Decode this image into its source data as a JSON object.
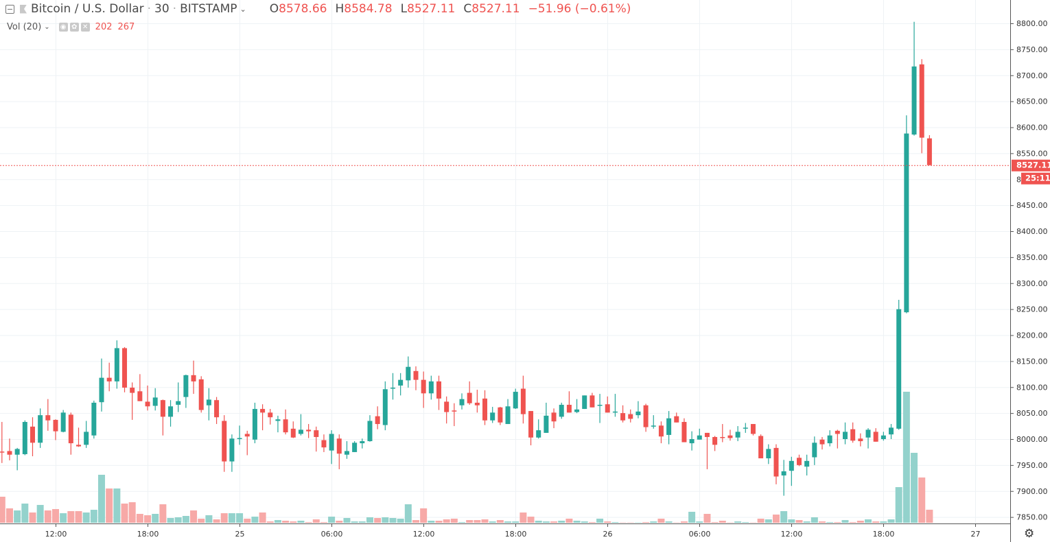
{
  "legend": {
    "symbol": "Bitcoin / U.S. Dollar",
    "interval": "30",
    "exchange": "BITSTAMP",
    "o_label": "O",
    "o": "8578.66",
    "h_label": "H",
    "h": "8584.78",
    "l_label": "L",
    "l": "8527.11",
    "c_label": "C",
    "c": "8527.11",
    "change": "−51.96 (−0.61%)"
  },
  "volume_legend": {
    "label": "Vol (20)",
    "volume": "202",
    "ma": "267"
  },
  "price_label": {
    "last": "8527.11",
    "countdown": "25:11",
    "hidden_tick": "8"
  },
  "colors": {
    "up": "#26a69a",
    "down": "#ef5350",
    "up_volume": "#93d2cc",
    "down_volume": "#f7a9a7",
    "grid": "#eef2f5"
  },
  "icons": {
    "collapse": "minus-square-icon",
    "settings": "gear-icon"
  },
  "chart_data": {
    "type": "candlestick",
    "interval_minutes": 30,
    "ylim": [
      7850,
      8800
    ],
    "yticks": [
      8800,
      8750,
      8700,
      8650,
      8600,
      8550,
      8450,
      8400,
      8350,
      8300,
      8250,
      8200,
      8150,
      8100,
      8050,
      8000,
      7950,
      7900,
      7850
    ],
    "xticks": [
      {
        "at": "24 12:00",
        "label": "12:00"
      },
      {
        "at": "24 18:00",
        "label": "18:00"
      },
      {
        "at": "25 00:00",
        "label": "25"
      },
      {
        "at": "25 06:00",
        "label": "06:00"
      },
      {
        "at": "25 12:00",
        "label": "12:00"
      },
      {
        "at": "25 18:00",
        "label": "18:00"
      },
      {
        "at": "26 00:00",
        "label": "26"
      },
      {
        "at": "26 06:00",
        "label": "06:00"
      },
      {
        "at": "26 12:00",
        "label": "12:00"
      },
      {
        "at": "26 18:00",
        "label": "18:00"
      },
      {
        "at": "27 00:00",
        "label": "27"
      }
    ],
    "grid": true,
    "columns": [
      "time",
      "open",
      "high",
      "low",
      "close",
      "volume"
    ],
    "candles": [
      [
        "24 08:30",
        7976,
        8033,
        7954,
        7975,
        403
      ],
      [
        "24 09:00",
        7977,
        8001,
        7959,
        7970,
        223
      ],
      [
        "24 09:30",
        7970,
        7983,
        7940,
        7981,
        191
      ],
      [
        "24 10:00",
        7971,
        8036,
        7969,
        8033,
        297
      ],
      [
        "24 10:30",
        8024,
        8042,
        7967,
        7993,
        159
      ],
      [
        "24 11:00",
        7993,
        8059,
        7983,
        8046,
        276
      ],
      [
        "24 11:30",
        8046,
        8077,
        8016,
        8036,
        191
      ],
      [
        "24 12:00",
        8037,
        8038,
        7998,
        8015,
        212
      ],
      [
        "24 12:30",
        8014,
        8056,
        8013,
        8051,
        148
      ],
      [
        "24 13:00",
        8047,
        8051,
        7970,
        7992,
        180
      ],
      [
        "24 13:30",
        7989,
        8022,
        7985,
        7986,
        180
      ],
      [
        "24 14:00",
        7989,
        8035,
        7983,
        8014,
        159
      ],
      [
        "24 14:30",
        8007,
        8074,
        8001,
        8070,
        201
      ],
      [
        "24 15:00",
        8071,
        8155,
        8053,
        8118,
        742
      ],
      [
        "24 15:30",
        8118,
        8147,
        8092,
        8111,
        530
      ],
      [
        "24 16:00",
        8111,
        8190,
        8097,
        8175,
        530
      ],
      [
        "24 16:30",
        8175,
        8177,
        8090,
        8099,
        297
      ],
      [
        "24 17:00",
        8099,
        8109,
        8037,
        8089,
        318
      ],
      [
        "24 17:30",
        8092,
        8125,
        8073,
        8073,
        138
      ],
      [
        "24 18:00",
        8072,
        8103,
        8055,
        8063,
        117
      ],
      [
        "24 18:30",
        8064,
        8098,
        8055,
        8080,
        138
      ],
      [
        "24 19:00",
        8075,
        8076,
        8007,
        8043,
        286
      ],
      [
        "24 19:30",
        8043,
        8075,
        8024,
        8063,
        74
      ],
      [
        "24 20:00",
        8066,
        8109,
        8052,
        8073,
        85
      ],
      [
        "24 20:30",
        8081,
        8124,
        8060,
        8123,
        106
      ],
      [
        "24 21:00",
        8123,
        8151,
        8087,
        8111,
        191
      ],
      [
        "24 21:30",
        8115,
        8121,
        8051,
        8056,
        64
      ],
      [
        "24 22:00",
        8065,
        8098,
        8036,
        8076,
        117
      ],
      [
        "24 22:30",
        8075,
        8081,
        8029,
        8042,
        53
      ],
      [
        "24 23:00",
        8035,
        8046,
        7937,
        7957,
        148
      ],
      [
        "24 23:30",
        7957,
        8009,
        7937,
        8001,
        148
      ],
      [
        "25 00:00",
        8000,
        8026,
        7989,
        8002,
        148
      ],
      [
        "25 00:30",
        8010,
        8016,
        7969,
        8005,
        64
      ],
      [
        "25 01:00",
        7999,
        8070,
        7992,
        8058,
        95
      ],
      [
        "25 01:30",
        8058,
        8067,
        8017,
        8051,
        159
      ],
      [
        "25 02:00",
        8051,
        8058,
        8028,
        8042,
        21
      ],
      [
        "25 02:30",
        8035,
        8045,
        8013,
        8038,
        42
      ],
      [
        "25 03:00",
        8038,
        8057,
        8009,
        8013,
        32
      ],
      [
        "25 03:30",
        8020,
        8034,
        8002,
        8003,
        21
      ],
      [
        "25 04:00",
        8010,
        8048,
        8007,
        8018,
        32
      ],
      [
        "25 04:30",
        8018,
        8029,
        8002,
        8015,
        11
      ],
      [
        "25 05:00",
        8017,
        8024,
        7976,
        8004,
        53
      ],
      [
        "25 05:30",
        7998,
        8009,
        7975,
        7984,
        11
      ],
      [
        "25 06:00",
        7978,
        8017,
        7952,
        8010,
        95
      ],
      [
        "25 06:30",
        8001,
        8009,
        7942,
        7972,
        32
      ],
      [
        "25 07:00",
        7970,
        7996,
        7962,
        7977,
        74
      ],
      [
        "25 07:30",
        7975,
        7996,
        7975,
        7993,
        21
      ],
      [
        "25 08:00",
        7992,
        8001,
        7982,
        7996,
        21
      ],
      [
        "25 08:30",
        7996,
        8046,
        7995,
        8035,
        85
      ],
      [
        "25 09:00",
        8044,
        8063,
        8019,
        8029,
        74
      ],
      [
        "25 09:30",
        8027,
        8111,
        8017,
        8096,
        85
      ],
      [
        "25 10:00",
        8098,
        8127,
        8076,
        8099,
        74
      ],
      [
        "25 10:30",
        8103,
        8127,
        8084,
        8114,
        64
      ],
      [
        "25 11:00",
        8113,
        8159,
        8099,
        8139,
        286
      ],
      [
        "25 11:30",
        8131,
        8140,
        8094,
        8114,
        42
      ],
      [
        "25 12:00",
        8114,
        8130,
        8060,
        8088,
        223
      ],
      [
        "25 12:30",
        8088,
        8122,
        8076,
        8111,
        32
      ],
      [
        "25 13:00",
        8111,
        8122,
        8056,
        8078,
        32
      ],
      [
        "25 13:30",
        8072,
        8082,
        8030,
        8052,
        53
      ],
      [
        "25 14:00",
        8055,
        8069,
        8025,
        8054,
        64
      ],
      [
        "25 14:30",
        8065,
        8088,
        8057,
        8077,
        11
      ],
      [
        "25 15:00",
        8089,
        8111,
        8066,
        8069,
        42
      ],
      [
        "25 15:30",
        8070,
        8095,
        8051,
        8065,
        42
      ],
      [
        "25 16:00",
        8078,
        8094,
        8027,
        8036,
        53
      ],
      [
        "25 16:30",
        8036,
        8062,
        8031,
        8051,
        21
      ],
      [
        "25 17:00",
        8061,
        8062,
        8027,
        8032,
        42
      ],
      [
        "25 17:30",
        8029,
        8077,
        8029,
        8063,
        21
      ],
      [
        "25 18:00",
        8059,
        8097,
        8058,
        8091,
        21
      ],
      [
        "25 18:30",
        8097,
        8122,
        8030,
        8048,
        159
      ],
      [
        "25 19:00",
        8054,
        8054,
        7988,
        8003,
        95
      ],
      [
        "25 19:30",
        8003,
        8038,
        8001,
        8017,
        32
      ],
      [
        "25 20:00",
        8012,
        8070,
        8012,
        8045,
        21
      ],
      [
        "25 20:30",
        8051,
        8059,
        8021,
        8034,
        21
      ],
      [
        "25 21:00",
        8043,
        8070,
        8039,
        8066,
        32
      ],
      [
        "25 21:30",
        8066,
        8092,
        8051,
        8051,
        64
      ],
      [
        "25 22:00",
        8052,
        8077,
        8050,
        8057,
        32
      ],
      [
        "25 22:30",
        8058,
        8084,
        8058,
        8084,
        21
      ],
      [
        "25 23:00",
        8084,
        8089,
        8061,
        8061,
        11
      ],
      [
        "25 23:30",
        8064,
        8087,
        8031,
        8066,
        64
      ],
      [
        "26 00:00",
        8067,
        8082,
        8051,
        8051,
        21
      ],
      [
        "26 00:30",
        8051,
        8087,
        8043,
        8053,
        11
      ],
      [
        "26 01:00",
        8050,
        8065,
        8032,
        8036,
        5
      ],
      [
        "26 01:30",
        8048,
        8057,
        8032,
        8039,
        5
      ],
      [
        "26 02:00",
        8046,
        8073,
        8040,
        8053,
        5
      ],
      [
        "26 02:30",
        8065,
        8068,
        8014,
        8023,
        11
      ],
      [
        "26 03:00",
        8024,
        8046,
        8020,
        8026,
        21
      ],
      [
        "26 03:30",
        8026,
        8034,
        7992,
        8005,
        64
      ],
      [
        "26 04:00",
        8008,
        8054,
        7990,
        8040,
        21
      ],
      [
        "26 04:30",
        8044,
        8051,
        8032,
        8032,
        5
      ],
      [
        "26 05:00",
        8033,
        8040,
        7994,
        7994,
        21
      ],
      [
        "26 05:30",
        7992,
        8015,
        7978,
        8000,
        170
      ],
      [
        "26 06:00",
        7999,
        8020,
        7999,
        8007,
        21
      ],
      [
        "26 06:30",
        8012,
        8012,
        7942,
        8004,
        138
      ],
      [
        "26 07:00",
        8004,
        8006,
        7977,
        7989,
        11
      ],
      [
        "26 07:30",
        8004,
        8029,
        7994,
        8002,
        32
      ],
      [
        "26 08:00",
        8007,
        8018,
        7997,
        8002,
        5
      ],
      [
        "26 08:30",
        8003,
        8025,
        7996,
        8014,
        21
      ],
      [
        "26 09:00",
        8021,
        8031,
        8012,
        8022,
        11
      ],
      [
        "26 09:30",
        8029,
        8029,
        8007,
        8010,
        5
      ],
      [
        "26 10:00",
        8006,
        8009,
        7963,
        7963,
        64
      ],
      [
        "26 10:30",
        7963,
        7990,
        7952,
        7981,
        53
      ],
      [
        "26 11:00",
        7983,
        7990,
        7913,
        7928,
        127
      ],
      [
        "26 11:30",
        7930,
        7960,
        7891,
        7938,
        180
      ],
      [
        "26 12:00",
        7939,
        7966,
        7910,
        7958,
        53
      ],
      [
        "26 12:30",
        7964,
        7970,
        7948,
        7950,
        42
      ],
      [
        "26 13:00",
        7947,
        7970,
        7930,
        7958,
        21
      ],
      [
        "26 13:30",
        7965,
        8005,
        7950,
        7993,
        85
      ],
      [
        "26 14:00",
        7999,
        8004,
        7980,
        7990,
        21
      ],
      [
        "26 14:30",
        7992,
        8017,
        7986,
        8007,
        11
      ],
      [
        "26 15:00",
        8016,
        8018,
        7982,
        8010,
        11
      ],
      [
        "26 15:30",
        8000,
        8032,
        7990,
        8014,
        42
      ],
      [
        "26 16:00",
        8019,
        8032,
        7993,
        7997,
        11
      ],
      [
        "26 16:30",
        8001,
        8011,
        7986,
        7996,
        32
      ],
      [
        "26 17:00",
        8003,
        8021,
        7982,
        8018,
        53
      ],
      [
        "26 17:30",
        8014,
        8021,
        7995,
        7995,
        21
      ],
      [
        "26 18:00",
        8000,
        8014,
        7997,
        8007,
        21
      ],
      [
        "26 18:30",
        8009,
        8029,
        8000,
        8022,
        53
      ],
      [
        "26 19:00",
        8020,
        8268,
        8018,
        8250,
        551
      ],
      [
        "26 19:30",
        8244,
        8623,
        8242,
        8588,
        2025
      ],
      [
        "26 20:00",
        8586,
        8803,
        8584,
        8717,
        1081
      ],
      [
        "26 20:30",
        8721,
        8731,
        8550,
        8580,
        700
      ],
      [
        "26 21:00",
        8578.66,
        8584.78,
        8527.11,
        8527.11,
        202
      ]
    ]
  }
}
